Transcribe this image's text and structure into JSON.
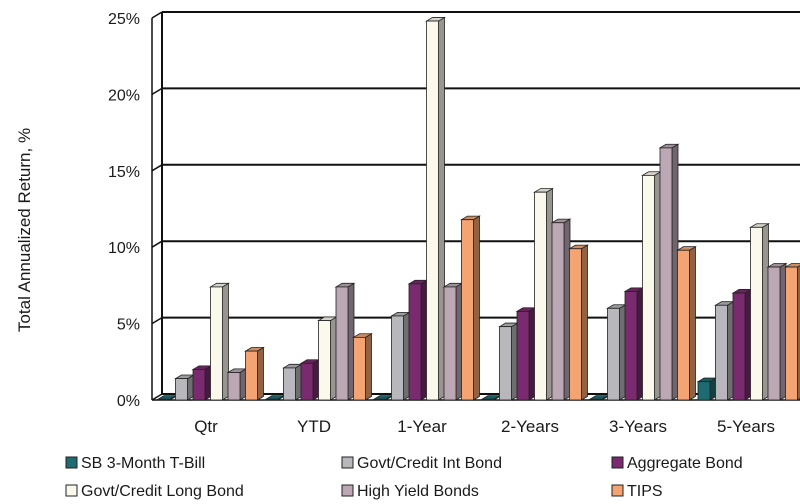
{
  "chart_data": {
    "type": "bar",
    "title": "",
    "xlabel": "",
    "ylabel": "Total Annualized Return, %",
    "ylim": [
      0,
      25
    ],
    "yticks": [
      "0%",
      "5%",
      "10%",
      "15%",
      "20%",
      "25%"
    ],
    "grid": true,
    "legend_position": "bottom",
    "categories": [
      "Qtr",
      "YTD",
      "1-Year",
      "2-Years",
      "3-Years",
      "5-Years"
    ],
    "series": [
      {
        "name": "SB 3-Month T-Bill",
        "color": "#1f6b72",
        "values": [
          0.05,
          0.05,
          0.05,
          0.05,
          0.05,
          1.2
        ]
      },
      {
        "name": "Govt/Credit Int Bond",
        "color": "#b8b8bc",
        "values": [
          1.4,
          2.1,
          5.5,
          4.8,
          6.0,
          6.2
        ]
      },
      {
        "name": "Aggregate Bond",
        "color": "#7a2a6e",
        "values": [
          2.0,
          2.4,
          7.6,
          5.8,
          7.1,
          7.0
        ]
      },
      {
        "name": "Govt/Credit Long Bond",
        "color": "#fbf8ec",
        "values": [
          7.4,
          5.2,
          24.8,
          13.6,
          14.7,
          11.3
        ]
      },
      {
        "name": "High Yield Bonds",
        "color": "#bba8b4",
        "values": [
          1.8,
          7.4,
          7.4,
          11.6,
          16.5,
          8.7
        ]
      },
      {
        "name": "TIPS",
        "color": "#f4a373",
        "values": [
          3.2,
          4.1,
          11.8,
          9.9,
          9.8,
          8.7
        ]
      }
    ]
  }
}
